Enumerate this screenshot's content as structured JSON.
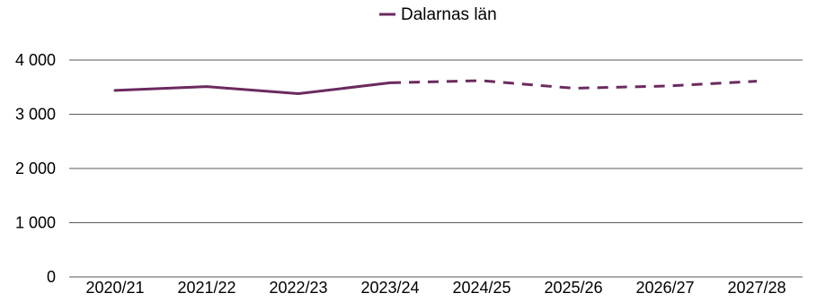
{
  "chart_data": {
    "type": "line",
    "categories": [
      "2020/21",
      "2021/22",
      "2022/23",
      "2023/24",
      "2024/25",
      "2025/26",
      "2026/27",
      "2027/28"
    ],
    "series": [
      {
        "name": "Dalarnas län",
        "values": [
          3440,
          3510,
          3380,
          3580,
          3620,
          3480,
          3520,
          3610
        ],
        "solid_until_index": 3,
        "color": "#6b2a5e"
      }
    ],
    "yticks": [
      0,
      1000,
      2000,
      3000,
      4000
    ],
    "ytick_labels": [
      "0",
      "1 000",
      "2 000",
      "3 000",
      "4 000"
    ],
    "ylim": [
      0,
      4000
    ],
    "grid": "horizontal",
    "legend_position": "top-center",
    "gridline_color": "#595959"
  }
}
